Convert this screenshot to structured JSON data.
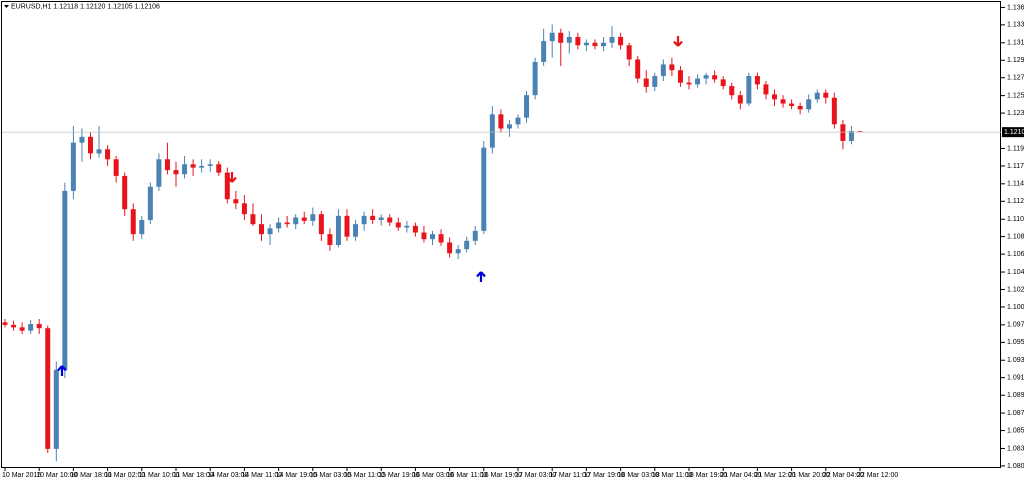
{
  "chart_data": {
    "type": "candlestick",
    "title": "EURUSD,H1  1.12118 1.12120 1.12105 1.12106",
    "up_color": "#4a82b4",
    "down_color": "#e8141c",
    "categories": [
      "10 Mar 2016",
      null,
      null,
      null,
      "10 Mar 10:00",
      null,
      null,
      null,
      "10 Mar 18:00",
      null,
      null,
      null,
      "11 Mar 02:00",
      null,
      null,
      null,
      "11 Mar 10:00",
      null,
      null,
      null,
      "11 Mar 18:00",
      null,
      null,
      null,
      "14 Mar 03:00",
      null,
      null,
      null,
      "14 Mar 11:00",
      null,
      null,
      null,
      "14 Mar 19:00",
      null,
      null,
      null,
      "15 Mar 03:00",
      null,
      null,
      null,
      "15 Mar 11:00",
      null,
      null,
      null,
      "15 Mar 19:00",
      null,
      null,
      null,
      "16 Mar 03:00",
      null,
      null,
      null,
      "16 Mar 11:00",
      null,
      null,
      null,
      "16 Mar 19:00",
      null,
      null,
      null,
      "17 Mar 03:00",
      null,
      null,
      null,
      "17 Mar 11:00",
      null,
      null,
      null,
      "17 Mar 19:00",
      null,
      null,
      null,
      "18 Mar 03:00",
      null,
      null,
      null,
      "18 Mar 11:00",
      null,
      null,
      null,
      "18 Mar 19:00",
      null,
      null,
      null,
      "21 Mar 04:00",
      null,
      null,
      null,
      "21 Mar 12:00",
      null,
      null,
      null,
      "21 Mar 20:00",
      null,
      null,
      null,
      "22 Mar 04:00",
      null,
      null,
      null,
      "22 Mar 12:00"
    ],
    "open": [
      1.0982,
      1.0979,
      1.0976,
      1.0972,
      1.098,
      1.0975,
      1.083,
      1.0925,
      1.114,
      1.1198,
      1.1205,
      1.1185,
      1.119,
      1.1178,
      1.1158,
      1.1118,
      1.1088,
      1.1105,
      1.1145,
      1.1178,
      1.1165,
      1.116,
      1.1172,
      1.1168,
      1.117,
      1.1172,
      1.1162,
      1.113,
      1.1125,
      1.1112,
      1.11,
      1.1088,
      1.1095,
      1.1102,
      1.11,
      1.1108,
      1.1104,
      1.1112,
      1.1088,
      1.1075,
      1.111,
      1.1085,
      1.11,
      1.111,
      1.1105,
      1.1108,
      1.1102,
      1.1096,
      1.1098,
      1.109,
      1.1082,
      1.1088,
      1.1078,
      1.1065,
      1.107,
      1.108,
      1.1092,
      1.1192,
      1.1232,
      1.1215,
      1.122,
      1.1228,
      1.1255,
      1.1295,
      1.132,
      1.133,
      1.1318,
      1.1325,
      1.1315,
      1.1318,
      1.1314,
      1.1318,
      1.1325,
      1.1315,
      1.1298,
      1.1275,
      1.1265,
      1.1278,
      1.1292,
      1.1285,
      1.127,
      1.1268,
      1.1275,
      1.1279,
      1.1274,
      1.1266,
      1.1255,
      1.1245,
      1.1278,
      1.1268,
      1.1256,
      1.125,
      1.1245,
      1.1242,
      1.1238,
      1.125,
      1.1258,
      1.1252,
      1.122,
      1.12,
      1.12118
    ],
    "high": [
      1.0986,
      1.0984,
      1.0982,
      1.0985,
      1.0986,
      1.0978,
      1.0935,
      1.115,
      1.1218,
      1.1215,
      1.121,
      1.1218,
      1.1195,
      1.1182,
      1.1162,
      1.1125,
      1.111,
      1.115,
      1.1185,
      1.1198,
      1.1175,
      1.1182,
      1.1178,
      1.1178,
      1.1178,
      1.1176,
      1.1168,
      1.114,
      1.1135,
      1.1125,
      1.1112,
      1.11,
      1.1108,
      1.111,
      1.1112,
      1.1115,
      1.112,
      1.1116,
      1.1095,
      1.1118,
      1.1118,
      1.1105,
      1.1115,
      1.1118,
      1.1112,
      1.1112,
      1.1108,
      1.1104,
      1.1102,
      1.1098,
      1.1092,
      1.1094,
      1.1084,
      1.1075,
      1.1085,
      1.1098,
      1.12,
      1.1242,
      1.1238,
      1.1225,
      1.1232,
      1.126,
      1.13,
      1.1335,
      1.134,
      1.1335,
      1.1332,
      1.133,
      1.1322,
      1.1322,
      1.1325,
      1.1338,
      1.133,
      1.1318,
      1.1302,
      1.1285,
      1.1282,
      1.1298,
      1.13,
      1.129,
      1.1278,
      1.128,
      1.1282,
      1.1285,
      1.1278,
      1.127,
      1.126,
      1.1282,
      1.1282,
      1.1272,
      1.1262,
      1.1255,
      1.125,
      1.1246,
      1.1256,
      1.1262,
      1.1262,
      1.1258,
      1.1225,
      1.1218,
      1.1212
    ],
    "low": [
      1.0976,
      1.0972,
      1.0968,
      1.0968,
      1.0968,
      1.0825,
      1.0815,
      1.0915,
      1.113,
      1.1175,
      1.1178,
      1.118,
      1.117,
      1.115,
      1.111,
      1.108,
      1.1082,
      1.11,
      1.114,
      1.116,
      1.1145,
      1.1155,
      1.1158,
      1.1162,
      1.1163,
      1.1158,
      1.1125,
      1.1118,
      1.1105,
      1.1098,
      1.108,
      1.1075,
      1.109,
      1.1096,
      1.1094,
      1.11,
      1.1098,
      1.108,
      1.1068,
      1.1072,
      1.108,
      1.108,
      1.1092,
      1.11,
      1.1098,
      1.1098,
      1.1092,
      1.109,
      1.1085,
      1.1078,
      1.1075,
      1.1074,
      1.106,
      1.1058,
      1.1066,
      1.1075,
      1.1088,
      1.1185,
      1.121,
      1.1205,
      1.1215,
      1.1222,
      1.125,
      1.129,
      1.13,
      1.129,
      1.1305,
      1.131,
      1.1308,
      1.131,
      1.1308,
      1.1312,
      1.131,
      1.129,
      1.127,
      1.1258,
      1.126,
      1.1272,
      1.1278,
      1.1265,
      1.1262,
      1.1264,
      1.1268,
      1.127,
      1.1262,
      1.125,
      1.1238,
      1.1242,
      1.1262,
      1.125,
      1.1242,
      1.124,
      1.1238,
      1.1232,
      1.1234,
      1.1246,
      1.1245,
      1.1215,
      1.119,
      1.1196,
      1.12105
    ],
    "close": [
      1.0979,
      1.0976,
      1.0972,
      1.098,
      1.0975,
      1.083,
      1.0925,
      1.114,
      1.1198,
      1.1205,
      1.1185,
      1.119,
      1.1178,
      1.1158,
      1.1118,
      1.1088,
      1.1105,
      1.1145,
      1.1178,
      1.1165,
      1.116,
      1.1172,
      1.1168,
      1.117,
      1.1172,
      1.1162,
      1.113,
      1.1125,
      1.1112,
      1.11,
      1.1088,
      1.1095,
      1.1102,
      1.11,
      1.1108,
      1.1104,
      1.1112,
      1.1088,
      1.1075,
      1.111,
      1.1085,
      1.11,
      1.111,
      1.1105,
      1.1108,
      1.1102,
      1.1096,
      1.1098,
      1.109,
      1.1082,
      1.1088,
      1.1078,
      1.1065,
      1.107,
      1.108,
      1.1092,
      1.1192,
      1.1232,
      1.1215,
      1.122,
      1.1228,
      1.1255,
      1.1295,
      1.132,
      1.133,
      1.1318,
      1.1325,
      1.1315,
      1.1318,
      1.1314,
      1.1318,
      1.1325,
      1.1315,
      1.1298,
      1.1275,
      1.1265,
      1.1278,
      1.1292,
      1.1285,
      1.127,
      1.1268,
      1.1275,
      1.1279,
      1.1274,
      1.1266,
      1.1255,
      1.1245,
      1.1278,
      1.1268,
      1.1256,
      1.125,
      1.1245,
      1.1242,
      1.1238,
      1.125,
      1.1258,
      1.1252,
      1.122,
      1.12,
      1.12118,
      1.12106
    ],
    "price_line": 1.12106,
    "ylim": [
      1.0807,
      1.1367
    ],
    "yticks": [
      1.13605,
      1.13395,
      {
        "value": 1.1318,
        "label": "1.13180"
      },
      {
        "value": 1.1297,
        "label": "1.12970"
      },
      {
        "value": 1.1276,
        "label": "1.12760"
      },
      1.12545,
      1.12335,
      {
        "value": 1.1191,
        "label": "1.11910"
      },
      {
        "value": 1.117,
        "label": "1.11700"
      },
      1.11485,
      1.11275,
      {
        "value": 1.1106,
        "label": "1.11060"
      },
      {
        "value": 1.1085,
        "label": "1.10850"
      },
      {
        "value": 1.1064,
        "label": "1.10640"
      },
      1.10425,
      1.10215,
      1.10005,
      {
        "value": 1.0979,
        "label": "1.09790"
      },
      {
        "value": 1.0958,
        "label": "1.09580"
      },
      1.09365,
      1.09155,
      1.08945,
      {
        "value": 1.0873,
        "label": "1.08730"
      },
      {
        "value": 1.0852,
        "label": "1.08520"
      },
      1.08305,
      1.08095
    ]
  }
}
